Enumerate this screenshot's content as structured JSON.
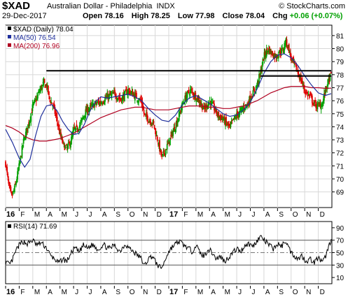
{
  "header": {
    "symbol": "$XAD",
    "name": "Australian Dollar - Philadelphia",
    "exchange": "INDX",
    "brand": "© StockCharts.com",
    "date": "29-Dec-2017",
    "open_label": "Open",
    "open": "78.16",
    "high_label": "High",
    "high": "78.25",
    "low_label": "Low",
    "low": "77.98",
    "close_label": "Close",
    "close": "78.04",
    "chg_label": "Chg",
    "chg": "+0.06 (+0.07%)"
  },
  "colors": {
    "up": "#00a000",
    "down": "#e00000",
    "ma50": "#1f2f9c",
    "ma200": "#b00020",
    "rsi": "#000000",
    "grid": "#d8d8d8"
  },
  "chart_data": [
    {
      "type": "candlestick",
      "legend": [
        {
          "label": "$XAD (Daily) 78.04",
          "color": "#000000"
        },
        {
          "label": "MA(50) 76.54",
          "color": "#1f2f9c"
        },
        {
          "label": "MA(200) 76.96",
          "color": "#b00020"
        }
      ],
      "yticks": [
        69,
        70,
        71,
        72,
        73,
        74,
        75,
        76,
        77,
        78,
        79,
        80,
        81
      ],
      "ylim": [
        67.8,
        81.8
      ],
      "x_tick_labels": [
        {
          "label": "16",
          "bold": true,
          "t": 0
        },
        {
          "label": "F",
          "t": 1
        },
        {
          "label": "M",
          "t": 2
        },
        {
          "label": "A",
          "t": 3
        },
        {
          "label": "M",
          "t": 4
        },
        {
          "label": "J",
          "t": 5
        },
        {
          "label": "J",
          "t": 6
        },
        {
          "label": "A",
          "t": 7
        },
        {
          "label": "S",
          "t": 8
        },
        {
          "label": "O",
          "t": 9
        },
        {
          "label": "N",
          "t": 10
        },
        {
          "label": "D",
          "t": 11
        },
        {
          "label": "17",
          "bold": true,
          "t": 12
        },
        {
          "label": "F",
          "t": 13
        },
        {
          "label": "M",
          "t": 14
        },
        {
          "label": "A",
          "t": 15
        },
        {
          "label": "M",
          "t": 16
        },
        {
          "label": "J",
          "t": 17
        },
        {
          "label": "J",
          "t": 18
        },
        {
          "label": "A",
          "t": 19
        },
        {
          "label": "S",
          "t": 20
        },
        {
          "label": "O",
          "t": 21
        },
        {
          "label": "N",
          "t": 22
        },
        {
          "label": "D",
          "t": 23
        }
      ],
      "t_range": [
        0,
        23.95
      ],
      "close_path": [
        [
          0,
          71.2
        ],
        [
          0.25,
          69.3
        ],
        [
          0.45,
          68.6
        ],
        [
          0.7,
          69.4
        ],
        [
          1.0,
          71.0
        ],
        [
          1.3,
          72.8
        ],
        [
          1.7,
          74.3
        ],
        [
          2.0,
          75.6
        ],
        [
          2.3,
          76.2
        ],
        [
          2.5,
          76.8
        ],
        [
          2.8,
          77.3
        ],
        [
          3.05,
          77.1
        ],
        [
          3.2,
          76.2
        ],
        [
          3.5,
          75.6
        ],
        [
          3.8,
          74.4
        ],
        [
          4.0,
          73.4
        ],
        [
          4.25,
          72.6
        ],
        [
          4.5,
          72.3
        ],
        [
          4.8,
          72.9
        ],
        [
          5.0,
          73.7
        ],
        [
          5.2,
          73.8
        ],
        [
          5.5,
          74.2
        ],
        [
          5.8,
          75.0
        ],
        [
          6.0,
          75.3
        ],
        [
          6.5,
          75.7
        ],
        [
          7.0,
          75.9
        ],
        [
          7.5,
          76.3
        ],
        [
          8.0,
          76.5
        ],
        [
          8.5,
          76.1
        ],
        [
          9.0,
          76.8
        ],
        [
          9.5,
          76.4
        ],
        [
          10.0,
          75.9
        ],
        [
          10.2,
          74.9
        ],
        [
          10.6,
          74.5
        ],
        [
          10.85,
          74.3
        ],
        [
          11.0,
          73.7
        ],
        [
          11.2,
          72.9
        ],
        [
          11.4,
          72.0
        ],
        [
          11.5,
          71.6
        ],
        [
          11.7,
          72.1
        ],
        [
          12.0,
          72.8
        ],
        [
          12.3,
          73.6
        ],
        [
          12.6,
          74.4
        ],
        [
          13.0,
          75.7
        ],
        [
          13.3,
          76.4
        ],
        [
          13.6,
          76.8
        ],
        [
          14.0,
          76.3
        ],
        [
          14.3,
          75.9
        ],
        [
          14.6,
          75.3
        ],
        [
          15.0,
          76.0
        ],
        [
          15.3,
          75.5
        ],
        [
          15.6,
          74.9
        ],
        [
          16.0,
          74.6
        ],
        [
          16.2,
          74.3
        ],
        [
          16.5,
          73.9
        ],
        [
          16.7,
          74.4
        ],
        [
          17.0,
          74.9
        ],
        [
          17.3,
          75.2
        ],
        [
          17.6,
          75.6
        ],
        [
          17.8,
          75.7
        ],
        [
          18.0,
          76.3
        ],
        [
          18.3,
          76.7
        ],
        [
          18.6,
          77.6
        ],
        [
          18.8,
          78.4
        ],
        [
          19.0,
          79.4
        ],
        [
          19.3,
          80.0
        ],
        [
          19.6,
          79.6
        ],
        [
          19.9,
          79.4
        ],
        [
          20.1,
          79.7
        ],
        [
          20.4,
          79.9
        ],
        [
          20.6,
          80.6
        ],
        [
          20.8,
          80.1
        ],
        [
          21.0,
          79.2
        ],
        [
          21.3,
          78.6
        ],
        [
          21.6,
          77.9
        ],
        [
          21.9,
          77.1
        ],
        [
          22.1,
          76.6
        ],
        [
          22.4,
          76.3
        ],
        [
          22.7,
          75.7
        ],
        [
          23.0,
          75.6
        ],
        [
          23.3,
          75.8
        ],
        [
          23.55,
          76.9
        ],
        [
          23.75,
          77.5
        ],
        [
          23.95,
          78.04
        ]
      ],
      "ma50_path": [
        [
          0,
          73.8
        ],
        [
          0.5,
          72.8
        ],
        [
          1.0,
          71.6
        ],
        [
          1.4,
          70.9
        ],
        [
          1.8,
          71.5
        ],
        [
          2.2,
          73.3
        ],
        [
          2.6,
          74.8
        ],
        [
          3.0,
          75.6
        ],
        [
          3.4,
          75.7
        ],
        [
          3.8,
          75.2
        ],
        [
          4.2,
          74.4
        ],
        [
          4.6,
          73.8
        ],
        [
          5.0,
          73.4
        ],
        [
          5.4,
          73.5
        ],
        [
          5.8,
          74.2
        ],
        [
          6.2,
          75.2
        ],
        [
          6.6,
          75.9
        ],
        [
          7.0,
          76.3
        ],
        [
          7.5,
          76.2
        ],
        [
          8.0,
          76.3
        ],
        [
          8.5,
          76.4
        ],
        [
          9.0,
          76.5
        ],
        [
          9.5,
          76.3
        ],
        [
          10.0,
          76.0
        ],
        [
          10.5,
          75.4
        ],
        [
          11.0,
          74.9
        ],
        [
          11.5,
          74.5
        ],
        [
          12.0,
          74.4
        ],
        [
          12.5,
          74.9
        ],
        [
          13.0,
          75.7
        ],
        [
          13.5,
          76.2
        ],
        [
          14.0,
          76.4
        ],
        [
          14.5,
          76.1
        ],
        [
          15.0,
          75.8
        ],
        [
          15.5,
          75.4
        ],
        [
          16.0,
          75.0
        ],
        [
          16.5,
          74.8
        ],
        [
          17.0,
          74.9
        ],
        [
          17.5,
          75.3
        ],
        [
          18.0,
          75.9
        ],
        [
          18.5,
          76.9
        ],
        [
          19.0,
          78.1
        ],
        [
          19.5,
          79.0
        ],
        [
          20.0,
          79.5
        ],
        [
          20.5,
          79.6
        ],
        [
          21.0,
          79.3
        ],
        [
          21.5,
          78.7
        ],
        [
          22.0,
          77.9
        ],
        [
          22.5,
          77.2
        ],
        [
          23.0,
          76.6
        ],
        [
          23.5,
          76.4
        ],
        [
          23.95,
          76.54
        ]
      ],
      "ma200_path": [
        [
          0,
          74.1
        ],
        [
          0.5,
          73.9
        ],
        [
          1.0,
          73.6
        ],
        [
          1.5,
          73.2
        ],
        [
          2.0,
          73.0
        ],
        [
          2.5,
          72.9
        ],
        [
          3.0,
          72.9
        ],
        [
          3.5,
          73.0
        ],
        [
          4.0,
          73.1
        ],
        [
          4.5,
          73.3
        ],
        [
          5.0,
          73.5
        ],
        [
          5.5,
          73.8
        ],
        [
          6.0,
          74.1
        ],
        [
          6.5,
          74.4
        ],
        [
          7.0,
          74.7
        ],
        [
          7.5,
          74.9
        ],
        [
          8.0,
          75.1
        ],
        [
          8.5,
          75.3
        ],
        [
          9.0,
          75.4
        ],
        [
          9.5,
          75.5
        ],
        [
          10.0,
          75.5
        ],
        [
          10.5,
          75.4
        ],
        [
          11.0,
          75.3
        ],
        [
          11.5,
          75.3
        ],
        [
          12.0,
          75.3
        ],
        [
          12.5,
          75.4
        ],
        [
          13.0,
          75.5
        ],
        [
          13.5,
          75.6
        ],
        [
          14.0,
          75.6
        ],
        [
          14.5,
          75.6
        ],
        [
          15.0,
          75.5
        ],
        [
          15.5,
          75.5
        ],
        [
          16.0,
          75.4
        ],
        [
          16.5,
          75.4
        ],
        [
          17.0,
          75.5
        ],
        [
          17.5,
          75.6
        ],
        [
          18.0,
          75.8
        ],
        [
          18.5,
          76.0
        ],
        [
          19.0,
          76.3
        ],
        [
          19.5,
          76.6
        ],
        [
          20.0,
          76.8
        ],
        [
          20.5,
          77.0
        ],
        [
          21.0,
          77.1
        ],
        [
          21.5,
          77.1
        ],
        [
          22.0,
          77.1
        ],
        [
          22.5,
          77.0
        ],
        [
          23.0,
          77.0
        ],
        [
          23.5,
          76.95
        ],
        [
          23.95,
          76.96
        ]
      ],
      "resistance_lines": [
        {
          "t_start": 3.0,
          "t_end": 23.95,
          "value": 78.3
        },
        {
          "t_start": 18.75,
          "t_end": 23.95,
          "value": 77.9
        }
      ]
    },
    {
      "type": "line",
      "legend": [
        {
          "label": "RSI(14) 71.69",
          "color": "#000000"
        }
      ],
      "yticks": [
        10,
        30,
        50,
        70,
        90
      ],
      "ylim": [
        0,
        100
      ],
      "reference_lines": [
        30,
        70
      ],
      "dashed_line": 50,
      "rsi_path": [
        [
          0,
          35
        ],
        [
          0.3,
          30
        ],
        [
          0.5,
          38
        ],
        [
          0.8,
          55
        ],
        [
          1.0,
          62
        ],
        [
          1.3,
          68
        ],
        [
          1.6,
          64
        ],
        [
          2.0,
          70
        ],
        [
          2.3,
          62
        ],
        [
          2.6,
          66
        ],
        [
          3.0,
          58
        ],
        [
          3.3,
          45
        ],
        [
          3.6,
          40
        ],
        [
          3.9,
          33
        ],
        [
          4.2,
          40
        ],
        [
          4.5,
          36
        ],
        [
          4.8,
          48
        ],
        [
          5.1,
          58
        ],
        [
          5.4,
          50
        ],
        [
          5.7,
          62
        ],
        [
          6.0,
          57
        ],
        [
          6.4,
          63
        ],
        [
          6.8,
          55
        ],
        [
          7.2,
          63
        ],
        [
          7.6,
          56
        ],
        [
          8.0,
          62
        ],
        [
          8.4,
          52
        ],
        [
          8.8,
          64
        ],
        [
          9.2,
          55
        ],
        [
          9.6,
          48
        ],
        [
          10.0,
          40
        ],
        [
          10.2,
          28
        ],
        [
          10.5,
          40
        ],
        [
          10.8,
          45
        ],
        [
          11.1,
          32
        ],
        [
          11.4,
          25
        ],
        [
          11.6,
          30
        ],
        [
          11.9,
          48
        ],
        [
          12.2,
          58
        ],
        [
          12.5,
          64
        ],
        [
          12.8,
          68
        ],
        [
          13.1,
          62
        ],
        [
          13.4,
          58
        ],
        [
          13.7,
          52
        ],
        [
          14.0,
          62
        ],
        [
          14.3,
          50
        ],
        [
          14.6,
          44
        ],
        [
          14.9,
          56
        ],
        [
          15.2,
          50
        ],
        [
          15.5,
          40
        ],
        [
          15.8,
          44
        ],
        [
          16.1,
          36
        ],
        [
          16.4,
          42
        ],
        [
          16.7,
          50
        ],
        [
          17.0,
          56
        ],
        [
          17.3,
          52
        ],
        [
          17.6,
          62
        ],
        [
          17.9,
          64
        ],
        [
          18.2,
          60
        ],
        [
          18.5,
          70
        ],
        [
          18.8,
          76
        ],
        [
          19.1,
          68
        ],
        [
          19.4,
          62
        ],
        [
          19.7,
          56
        ],
        [
          20.0,
          64
        ],
        [
          20.3,
          60
        ],
        [
          20.6,
          70
        ],
        [
          20.9,
          54
        ],
        [
          21.2,
          46
        ],
        [
          21.5,
          40
        ],
        [
          21.8,
          45
        ],
        [
          22.1,
          36
        ],
        [
          22.4,
          40
        ],
        [
          22.7,
          34
        ],
        [
          23.0,
          42
        ],
        [
          23.3,
          33
        ],
        [
          23.6,
          48
        ],
        [
          23.8,
          62
        ],
        [
          23.95,
          71.69
        ]
      ]
    }
  ]
}
